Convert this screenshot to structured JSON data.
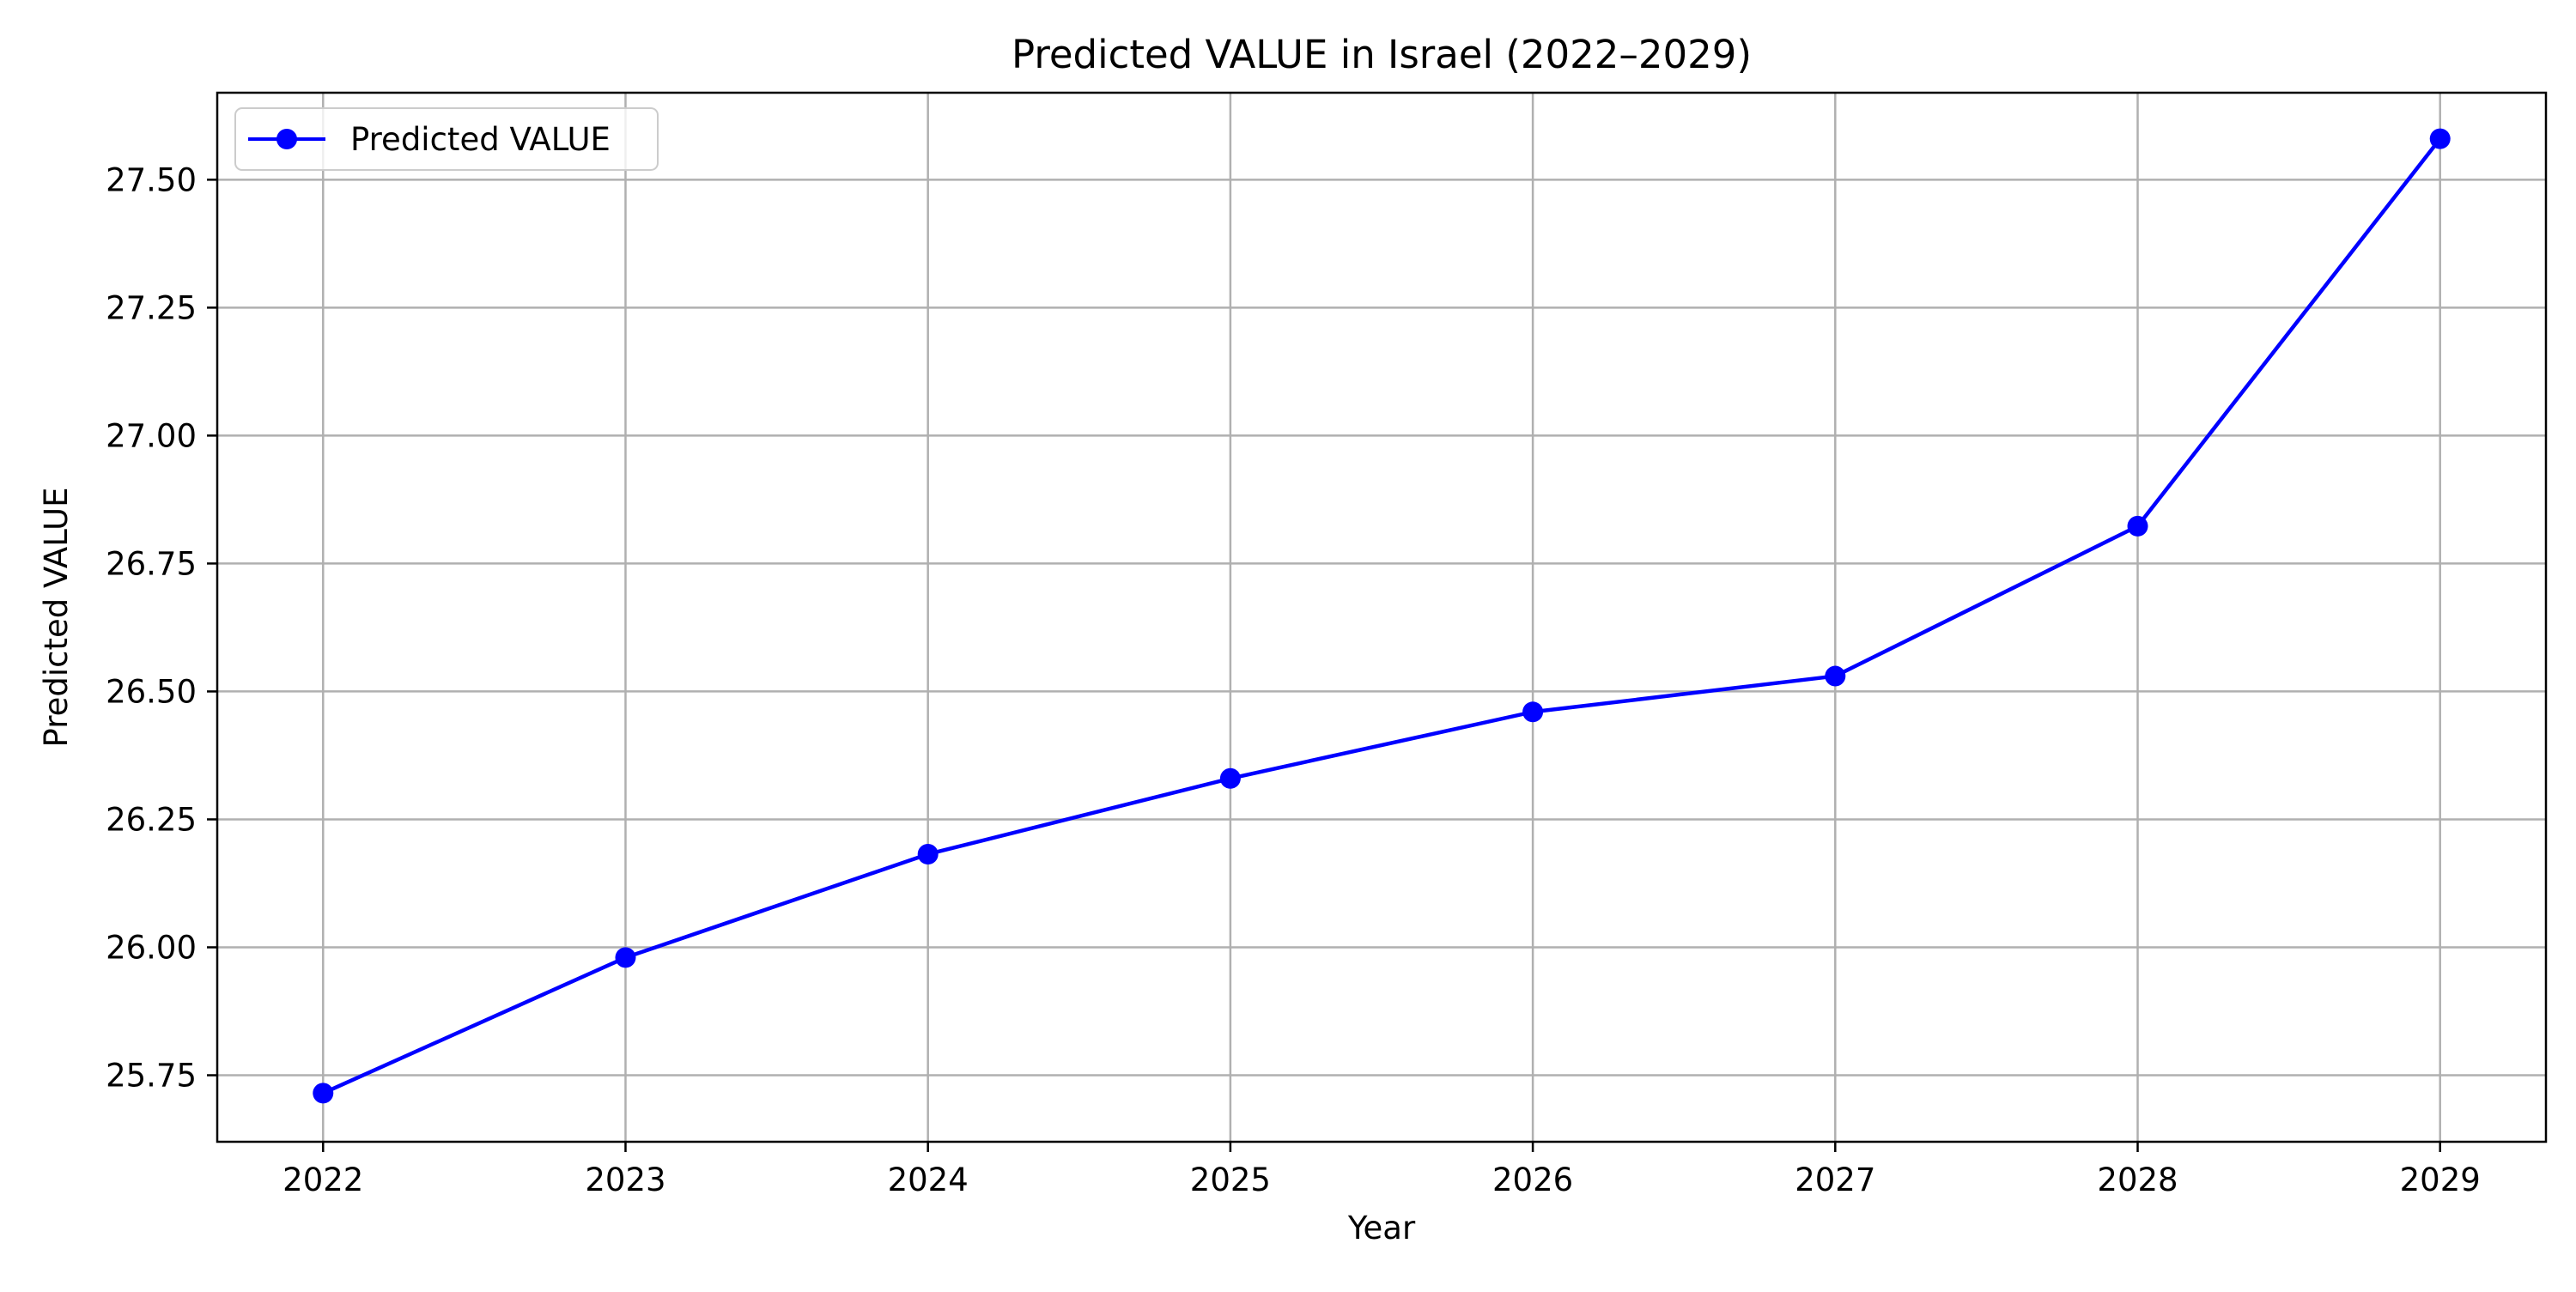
{
  "chart_data": {
    "type": "line",
    "title": "Predicted VALUE in Israel (2022–2029)",
    "xlabel": "Year",
    "ylabel": "Predicted VALUE",
    "x": [
      2022,
      2023,
      2024,
      2025,
      2026,
      2027,
      2028,
      2029
    ],
    "x_ticks": [
      "2022",
      "2023",
      "2024",
      "2025",
      "2026",
      "2027",
      "2028",
      "2029"
    ],
    "y_ticks": [
      "25.75",
      "26.00",
      "26.25",
      "26.50",
      "26.75",
      "27.00",
      "27.25",
      "27.50"
    ],
    "y_tick_values": [
      25.75,
      26.0,
      26.25,
      26.5,
      26.75,
      27.0,
      27.25,
      27.5
    ],
    "xlim": [
      2021.65,
      2029.35
    ],
    "ylim": [
      25.62,
      27.67
    ],
    "grid": true,
    "legend_position": "top-left",
    "series": [
      {
        "name": "Predicted VALUE",
        "color": "#0000ff",
        "marker": "circle",
        "values": [
          25.715,
          25.98,
          26.182,
          26.33,
          26.46,
          26.53,
          26.823,
          27.58
        ]
      }
    ]
  }
}
